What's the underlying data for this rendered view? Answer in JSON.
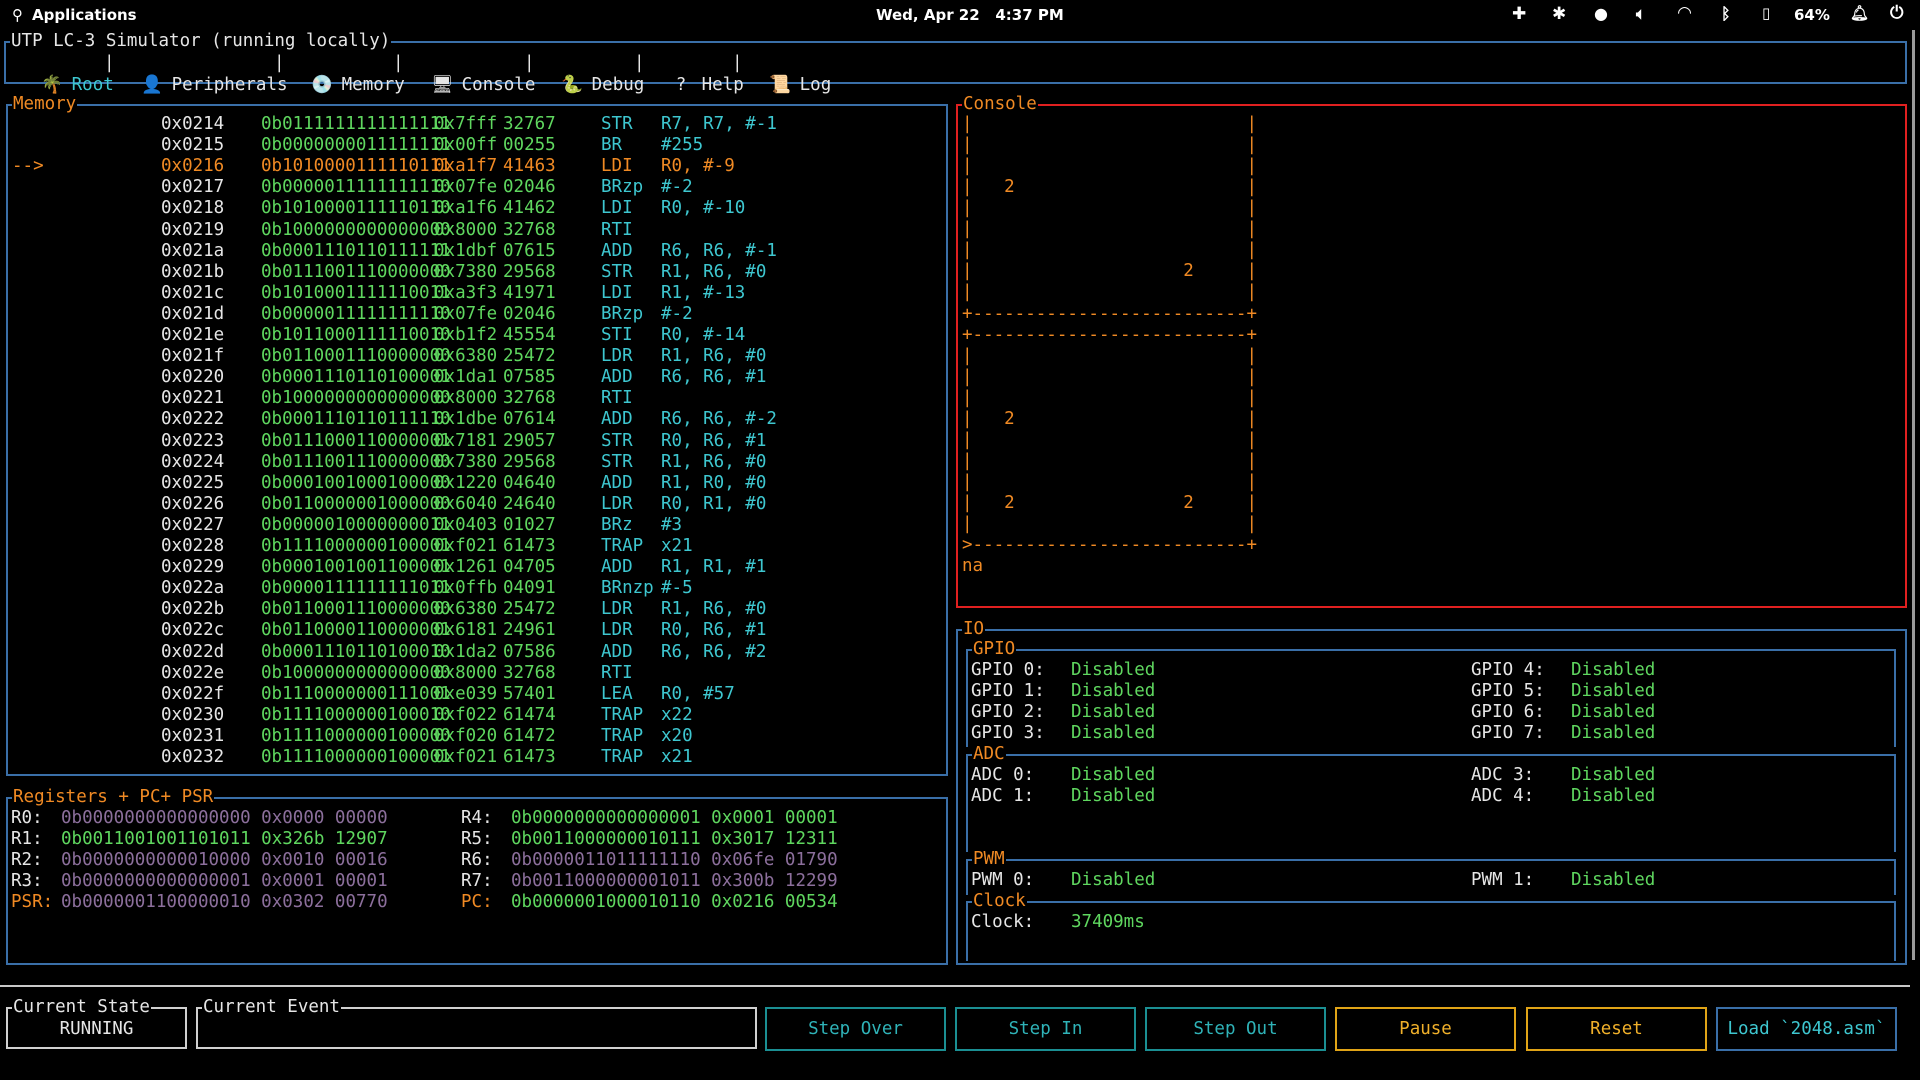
{
  "topbar": {
    "apps": "Applications",
    "datetime": "Wed, Apr 22   4:37 PM",
    "battery": "64%"
  },
  "window_title": "UTP LC-3 Simulator (running locally)",
  "tabs": [
    {
      "icon": "🌴",
      "label": "Root"
    },
    {
      "icon": "👤",
      "label": "Peripherals"
    },
    {
      "icon": "💿",
      "label": "Memory"
    },
    {
      "icon": "🖥",
      "label": "Console"
    },
    {
      "icon": "🐍",
      "label": "Debug"
    },
    {
      "icon": "?",
      "label": "Help"
    },
    {
      "icon": "📜",
      "label": "Log"
    }
  ],
  "memory": {
    "title": "Memory",
    "pointer": "-->",
    "rows": [
      {
        "addr": "0x0214",
        "bin": "0b0111111111111111",
        "hex": "0x7fff",
        "dec": "32767",
        "op": "STR",
        "args": "R7, R7, #-1"
      },
      {
        "addr": "0x0215",
        "bin": "0b0000000011111111",
        "hex": "0x00ff",
        "dec": "00255",
        "op": "BR",
        "args": "#255"
      },
      {
        "addr": "0x0216",
        "bin": "0b1010000111110111",
        "hex": "0xa1f7",
        "dec": "41463",
        "op": "LDI",
        "args": "R0, #-9",
        "current": true
      },
      {
        "addr": "0x0217",
        "bin": "0b0000011111111110",
        "hex": "0x07fe",
        "dec": "02046",
        "op": "BRzp",
        "args": "#-2"
      },
      {
        "addr": "0x0218",
        "bin": "0b1010000111110110",
        "hex": "0xa1f6",
        "dec": "41462",
        "op": "LDI",
        "args": "R0, #-10"
      },
      {
        "addr": "0x0219",
        "bin": "0b1000000000000000",
        "hex": "0x8000",
        "dec": "32768",
        "op": "RTI",
        "args": ""
      },
      {
        "addr": "0x021a",
        "bin": "0b0001110110111111",
        "hex": "0x1dbf",
        "dec": "07615",
        "op": "ADD",
        "args": "R6, R6, #-1"
      },
      {
        "addr": "0x021b",
        "bin": "0b0111001110000000",
        "hex": "0x7380",
        "dec": "29568",
        "op": "STR",
        "args": "R1, R6, #0"
      },
      {
        "addr": "0x021c",
        "bin": "0b1010001111110011",
        "hex": "0xa3f3",
        "dec": "41971",
        "op": "LDI",
        "args": "R1, #-13"
      },
      {
        "addr": "0x021d",
        "bin": "0b0000011111111110",
        "hex": "0x07fe",
        "dec": "02046",
        "op": "BRzp",
        "args": "#-2"
      },
      {
        "addr": "0x021e",
        "bin": "0b1011000111110010",
        "hex": "0xb1f2",
        "dec": "45554",
        "op": "STI",
        "args": "R0, #-14"
      },
      {
        "addr": "0x021f",
        "bin": "0b0110001110000000",
        "hex": "0x6380",
        "dec": "25472",
        "op": "LDR",
        "args": "R1, R6, #0"
      },
      {
        "addr": "0x0220",
        "bin": "0b0001110110100001",
        "hex": "0x1da1",
        "dec": "07585",
        "op": "ADD",
        "args": "R6, R6, #1"
      },
      {
        "addr": "0x0221",
        "bin": "0b1000000000000000",
        "hex": "0x8000",
        "dec": "32768",
        "op": "RTI",
        "args": ""
      },
      {
        "addr": "0x0222",
        "bin": "0b0001110110111110",
        "hex": "0x1dbe",
        "dec": "07614",
        "op": "ADD",
        "args": "R6, R6, #-2"
      },
      {
        "addr": "0x0223",
        "bin": "0b0111000110000001",
        "hex": "0x7181",
        "dec": "29057",
        "op": "STR",
        "args": "R0, R6, #1"
      },
      {
        "addr": "0x0224",
        "bin": "0b0111001110000000",
        "hex": "0x7380",
        "dec": "29568",
        "op": "STR",
        "args": "R1, R6, #0"
      },
      {
        "addr": "0x0225",
        "bin": "0b0001001000100000",
        "hex": "0x1220",
        "dec": "04640",
        "op": "ADD",
        "args": "R1, R0, #0"
      },
      {
        "addr": "0x0226",
        "bin": "0b0110000001000000",
        "hex": "0x6040",
        "dec": "24640",
        "op": "LDR",
        "args": "R0, R1, #0"
      },
      {
        "addr": "0x0227",
        "bin": "0b0000010000000011",
        "hex": "0x0403",
        "dec": "01027",
        "op": "BRz",
        "args": "#3"
      },
      {
        "addr": "0x0228",
        "bin": "0b1111000000100001",
        "hex": "0xf021",
        "dec": "61473",
        "op": "TRAP",
        "args": "x21"
      },
      {
        "addr": "0x0229",
        "bin": "0b0001001001100001",
        "hex": "0x1261",
        "dec": "04705",
        "op": "ADD",
        "args": "R1, R1, #1"
      },
      {
        "addr": "0x022a",
        "bin": "0b0000111111111011",
        "hex": "0x0ffb",
        "dec": "04091",
        "op": "BRnzp",
        "args": "#-5"
      },
      {
        "addr": "0x022b",
        "bin": "0b0110001110000000",
        "hex": "0x6380",
        "dec": "25472",
        "op": "LDR",
        "args": "R1, R6, #0"
      },
      {
        "addr": "0x022c",
        "bin": "0b0110000110000001",
        "hex": "0x6181",
        "dec": "24961",
        "op": "LDR",
        "args": "R0, R6, #1"
      },
      {
        "addr": "0x022d",
        "bin": "0b0001110110100010",
        "hex": "0x1da2",
        "dec": "07586",
        "op": "ADD",
        "args": "R6, R6, #2"
      },
      {
        "addr": "0x022e",
        "bin": "0b1000000000000000",
        "hex": "0x8000",
        "dec": "32768",
        "op": "RTI",
        "args": ""
      },
      {
        "addr": "0x022f",
        "bin": "0b1110000000111001",
        "hex": "0xe039",
        "dec": "57401",
        "op": "LEA",
        "args": "R0, #57"
      },
      {
        "addr": "0x0230",
        "bin": "0b1111000000100010",
        "hex": "0xf022",
        "dec": "61474",
        "op": "TRAP",
        "args": "x22"
      },
      {
        "addr": "0x0231",
        "bin": "0b1111000000100000",
        "hex": "0xf020",
        "dec": "61472",
        "op": "TRAP",
        "args": "x20"
      },
      {
        "addr": "0x0232",
        "bin": "0b1111000000100001",
        "hex": "0xf021",
        "dec": "61473",
        "op": "TRAP",
        "args": "x21"
      }
    ]
  },
  "registers": {
    "title": "Registers + PC+ PSR",
    "left": [
      {
        "name": "R0:",
        "value": "0b0000000000000000 0x0000 00000",
        "dim": true
      },
      {
        "name": "R1:",
        "value": "0b0011001001101011 0x326b 12907",
        "dim": false
      },
      {
        "name": "R2:",
        "value": "0b0000000000010000 0x0010 00016",
        "dim": true
      },
      {
        "name": "R3:",
        "value": "0b0000000000000001 0x0001 00001",
        "dim": true
      },
      {
        "name": "PSR:",
        "value": "0b0000001100000010 0x0302 00770",
        "dim": true,
        "orange": true
      }
    ],
    "right": [
      {
        "name": "R4:",
        "value": "0b0000000000000001 0x0001 00001",
        "dim": false
      },
      {
        "name": "R5:",
        "value": "0b0011000000010111 0x3017 12311",
        "dim": false
      },
      {
        "name": "R6:",
        "value": "0b0000011011111110 0x06fe 01790",
        "dim": true
      },
      {
        "name": "R7:",
        "value": "0b0011000000001011 0x300b 12299",
        "dim": true
      },
      {
        "name": "PC:",
        "value": "0b0000001000010110 0x0216 00534",
        "dim": false,
        "orange": true
      }
    ]
  },
  "console": {
    "title": "Console",
    "lines": [
      "|                          |",
      "|                          |",
      "|                          |",
      "|   2                      |",
      "|                          |",
      "|                          |",
      "|                          |",
      "|                    2     |",
      "|                          |",
      "+--------------------------+",
      "+--------------------------+",
      "|                          |",
      "|                          |",
      "|                          |",
      "|   2                      |",
      "|                          |",
      "|                          |",
      "|                          |",
      "|   2                2     |",
      "|                          |",
      ">--------------------------+",
      "na"
    ]
  },
  "io": {
    "title": "IO",
    "gpio": {
      "title": "GPIO",
      "left": [
        [
          "GPIO 0:",
          "Disabled"
        ],
        [
          "GPIO 1:",
          "Disabled"
        ],
        [
          "GPIO 2:",
          "Disabled"
        ],
        [
          "GPIO 3:",
          "Disabled"
        ]
      ],
      "right": [
        [
          "GPIO 4:",
          "Disabled"
        ],
        [
          "GPIO 5:",
          "Disabled"
        ],
        [
          "GPIO 6:",
          "Disabled"
        ],
        [
          "GPIO 7:",
          "Disabled"
        ]
      ]
    },
    "adc": {
      "title": "ADC",
      "left": [
        [
          "ADC 0:",
          "Disabled"
        ],
        [
          "ADC 1:",
          "Disabled"
        ]
      ],
      "right": [
        [
          "ADC 3:",
          "Disabled"
        ],
        [
          "ADC 4:",
          "Disabled"
        ]
      ]
    },
    "pwm": {
      "title": "PWM",
      "left": [
        [
          "PWM 0:",
          "Disabled"
        ]
      ],
      "right": [
        [
          "PWM 1:",
          "Disabled"
        ]
      ]
    },
    "clock": {
      "title": "Clock",
      "label": "Clock:",
      "value": "37409ms"
    }
  },
  "bottom": {
    "state_title": "Current State",
    "state_value": "RUNNING",
    "event_title": "Current Event",
    "event_value": "",
    "buttons": {
      "step_over": "Step Over",
      "step_in": "Step In",
      "step_out": "Step Out",
      "pause": "Pause",
      "reset": "Reset",
      "load": "Load `2048.asm`"
    }
  }
}
